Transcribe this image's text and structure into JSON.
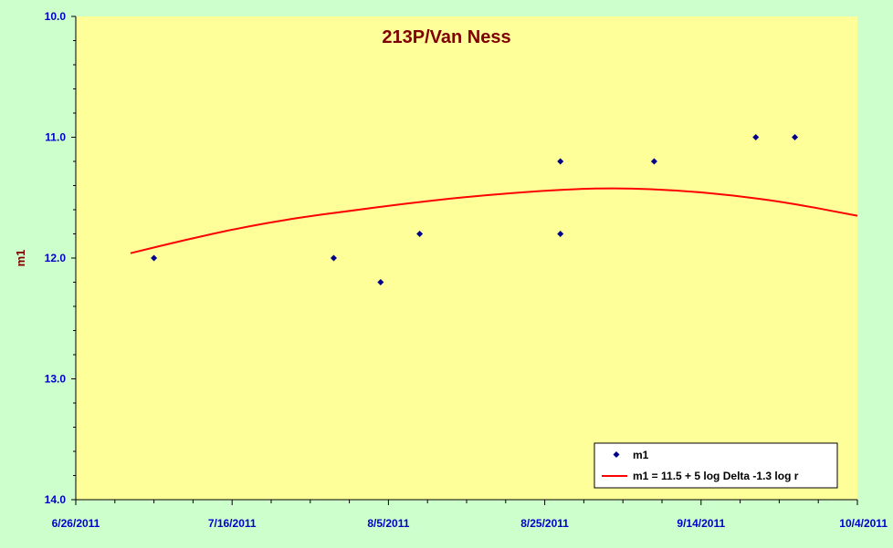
{
  "chart_data": {
    "type": "scatter",
    "title": "213P/Van Ness",
    "xlabel": "",
    "ylabel": "m1",
    "x_ticks": [
      "6/26/2011",
      "7/16/2011",
      "8/5/2011",
      "8/25/2011",
      "9/14/2011",
      "10/4/2011"
    ],
    "y_ticks": [
      "10.0",
      "11.0",
      "12.0",
      "13.0",
      "14.0"
    ],
    "xlim": [
      "2011-06-26",
      "2011-10-04"
    ],
    "ylim": [
      10.0,
      14.0
    ],
    "y_inverted": true,
    "grid": false,
    "legend_position": "bottom-right",
    "series": [
      {
        "name": "m1",
        "kind": "scatter",
        "color": "#00008b",
        "points": [
          {
            "x": "2011-07-06",
            "y": 12.0
          },
          {
            "x": "2011-07-29",
            "y": 12.0
          },
          {
            "x": "2011-08-04",
            "y": 12.2
          },
          {
            "x": "2011-08-09",
            "y": 11.8
          },
          {
            "x": "2011-08-27",
            "y": 11.2
          },
          {
            "x": "2011-08-27",
            "y": 11.8
          },
          {
            "x": "2011-09-08",
            "y": 11.2
          },
          {
            "x": "2011-09-21",
            "y": 11.0
          },
          {
            "x": "2011-09-26",
            "y": 11.0
          }
        ]
      },
      {
        "name": "m1 = 11.5 + 5 log Delta -1.3 log r",
        "kind": "line",
        "color": "#ff0000",
        "points": [
          {
            "x": "2011-07-03",
            "y": 11.96
          },
          {
            "x": "2011-07-10",
            "y": 11.85
          },
          {
            "x": "2011-07-17",
            "y": 11.75
          },
          {
            "x": "2011-07-24",
            "y": 11.67
          },
          {
            "x": "2011-07-31",
            "y": 11.61
          },
          {
            "x": "2011-08-07",
            "y": 11.55
          },
          {
            "x": "2011-08-14",
            "y": 11.5
          },
          {
            "x": "2011-08-21",
            "y": 11.46
          },
          {
            "x": "2011-08-28",
            "y": 11.43
          },
          {
            "x": "2011-09-04",
            "y": 11.42
          },
          {
            "x": "2011-09-11",
            "y": 11.44
          },
          {
            "x": "2011-09-18",
            "y": 11.48
          },
          {
            "x": "2011-09-25",
            "y": 11.54
          },
          {
            "x": "2011-10-04",
            "y": 11.65
          }
        ]
      }
    ]
  }
}
